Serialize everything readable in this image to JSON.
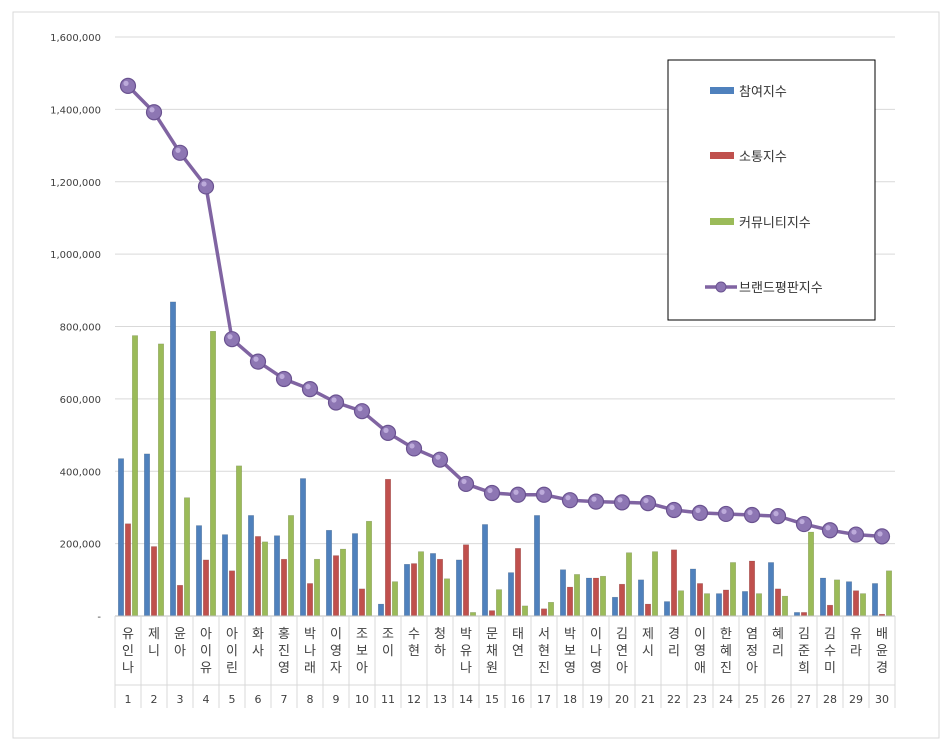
{
  "chart_data": {
    "type": "bar",
    "title": "",
    "xlabel": "",
    "ylabel": "",
    "ylim": [
      0,
      1600000
    ],
    "yticks": [
      "-",
      "200,000",
      "400,000",
      "600,000",
      "800,000",
      "1,000,000",
      "1,200,000",
      "1,400,000",
      "1,600,000"
    ],
    "grid": true,
    "legend_position": "top-right",
    "categories": [
      "유인나",
      "제니",
      "윤아",
      "아이유",
      "아이린",
      "화사",
      "홍진영",
      "박나래",
      "이영자",
      "조보아",
      "조이",
      "수현",
      "청하",
      "박유나",
      "문채원",
      "태연",
      "서현진",
      "박보영",
      "이나영",
      "김연아",
      "제시",
      "경리",
      "이영애",
      "한혜진",
      "염정아",
      "혜리",
      "김준희",
      "김수미",
      "유라",
      "배윤경"
    ],
    "ranks": [
      "1",
      "2",
      "3",
      "4",
      "5",
      "6",
      "7",
      "8",
      "9",
      "10",
      "11",
      "12",
      "13",
      "14",
      "15",
      "16",
      "17",
      "18",
      "19",
      "20",
      "21",
      "22",
      "23",
      "24",
      "25",
      "26",
      "27",
      "28",
      "29",
      "30"
    ],
    "series": [
      {
        "name": "참여지수",
        "type": "bar",
        "color": "#4F81BD",
        "values": [
          435000,
          448000,
          868000,
          250000,
          225000,
          278000,
          222000,
          380000,
          237000,
          228000,
          33000,
          143000,
          173000,
          155000,
          253000,
          120000,
          278000,
          128000,
          105000,
          52000,
          100000,
          40000,
          130000,
          62000,
          68000,
          148000,
          10000,
          105000,
          95000,
          90000
        ]
      },
      {
        "name": "소통지수",
        "type": "bar",
        "color": "#C0504D",
        "values": [
          255000,
          192000,
          85000,
          155000,
          125000,
          220000,
          157000,
          90000,
          167000,
          75000,
          378000,
          145000,
          157000,
          197000,
          15000,
          187000,
          20000,
          80000,
          105000,
          88000,
          33000,
          183000,
          90000,
          72000,
          152000,
          75000,
          10000,
          30000,
          70000,
          5000
        ]
      },
      {
        "name": "커뮤니티지수",
        "type": "bar",
        "color": "#9BBB59",
        "values": [
          775000,
          752000,
          327000,
          787000,
          415000,
          205000,
          278000,
          157000,
          185000,
          262000,
          95000,
          178000,
          103000,
          10000,
          73000,
          28000,
          38000,
          115000,
          110000,
          175000,
          178000,
          70000,
          62000,
          148000,
          62000,
          55000,
          232000,
          100000,
          62000,
          125000
        ]
      },
      {
        "name": "브랜드평판지수",
        "type": "line",
        "color": "#8064A2",
        "values": [
          1465000,
          1392000,
          1280000,
          1187000,
          765000,
          703000,
          655000,
          627000,
          590000,
          566000,
          506000,
          463000,
          432000,
          365000,
          340000,
          335000,
          335000,
          320000,
          316000,
          314000,
          312000,
          293000,
          285000,
          282000,
          279000,
          276000,
          254000,
          237000,
          225000,
          220000
        ]
      }
    ]
  }
}
